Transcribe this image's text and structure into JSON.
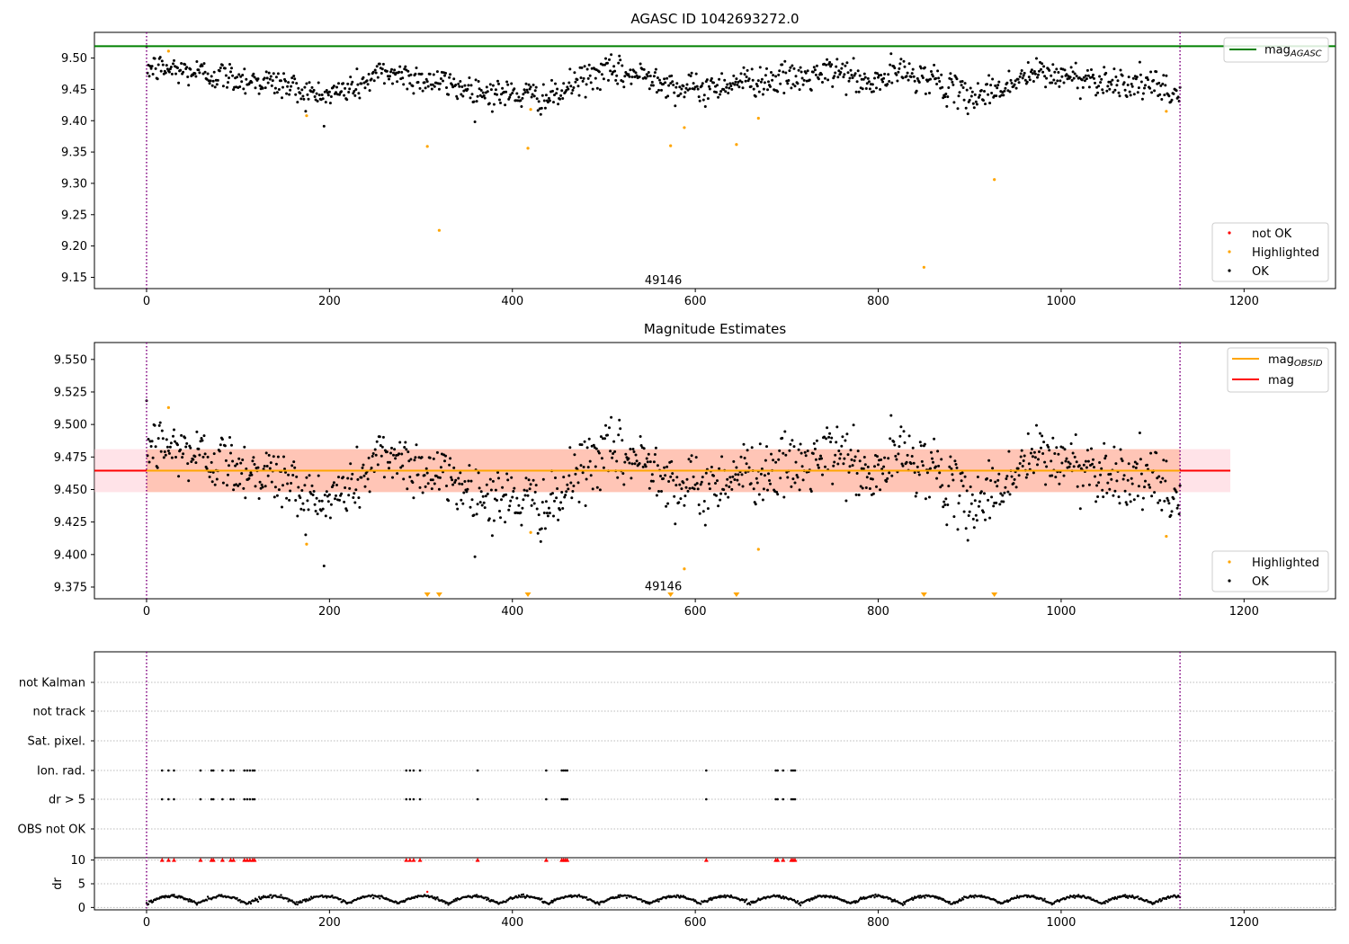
{
  "chart_data": [
    {
      "type": "scatter",
      "title": "AGASC ID 1042693272.0",
      "xlim": [
        -57,
        1300
      ],
      "ylim": [
        9.132,
        9.541
      ],
      "xticks": [
        0,
        200,
        400,
        600,
        800,
        1000,
        1200
      ],
      "xtick_labels": [
        "0",
        "200",
        "400",
        "600",
        "800",
        "1000",
        "1200"
      ],
      "yticks": [
        9.15,
        9.2,
        9.25,
        9.3,
        9.35,
        9.4,
        9.45,
        9.5
      ],
      "ytick_labels": [
        "9.15",
        "9.20",
        "9.25",
        "9.30",
        "9.35",
        "9.40",
        "9.45",
        "9.50"
      ],
      "obs_boundaries": [
        0,
        1130
      ],
      "obs_label": {
        "text": "49146",
        "x": 565,
        "y": 9.146
      },
      "mag_agasc": 9.519,
      "colors": {
        "ok": "#000000",
        "highlighted": "#FFA500",
        "not_ok": "#FF0000",
        "mag_agasc": "#008000",
        "boundary": "#800080"
      },
      "legend_line": {
        "text": "mag",
        "sub": "AGASC",
        "position": "top-right"
      },
      "legend_points": {
        "items": [
          "not OK",
          "Highlighted",
          "OK"
        ],
        "position": "bottom-right"
      },
      "highlighted": [
        [
          24,
          9.511
        ],
        [
          175,
          9.408
        ],
        [
          307,
          9.359
        ],
        [
          320,
          9.225
        ],
        [
          417,
          9.356
        ],
        [
          420,
          9.418
        ],
        [
          573,
          9.36
        ],
        [
          588,
          9.389
        ],
        [
          645,
          9.362
        ],
        [
          669,
          9.404
        ],
        [
          850,
          9.166
        ],
        [
          927,
          9.306
        ],
        [
          1115,
          9.415
        ]
      ]
    },
    {
      "type": "scatter",
      "title": "Magnitude Estimates",
      "xlim": [
        -57,
        1300
      ],
      "ylim": [
        9.366,
        9.563
      ],
      "xticks": [
        0,
        200,
        400,
        600,
        800,
        1000,
        1200
      ],
      "xtick_labels": [
        "0",
        "200",
        "400",
        "600",
        "800",
        "1000",
        "1200"
      ],
      "yticks": [
        9.375,
        9.4,
        9.425,
        9.45,
        9.475,
        9.5,
        9.525,
        9.55
      ],
      "ytick_labels": [
        "9.375",
        "9.400",
        "9.425",
        "9.450",
        "9.475",
        "9.500",
        "9.525",
        "9.550"
      ],
      "obs_boundaries": [
        0,
        1130
      ],
      "obs_label": {
        "text": "49146",
        "x": 565,
        "y": 9.376
      },
      "mag_obsid": 9.4645,
      "mag": 9.4645,
      "band_obsid": {
        "x": [
          0,
          1130
        ],
        "y": [
          9.448,
          9.481
        ]
      },
      "band_mag": {
        "x": [
          -57,
          1185
        ],
        "y": [
          9.448,
          9.481
        ]
      },
      "colors": {
        "ok": "#000000",
        "highlighted": "#FFA500",
        "mag_obsid": "#FFA500",
        "mag": "#FF0000",
        "band_obsid": "#FFA07A",
        "band_mag": "#FFC0CB",
        "boundary": "#800080"
      },
      "legend_lines": {
        "items": [
          {
            "text": "mag",
            "sub": "OBSID"
          },
          {
            "text": "mag",
            "sub": ""
          }
        ],
        "position": "top-right"
      },
      "legend_points": {
        "items": [
          "Highlighted",
          "OK"
        ],
        "position": "bottom-right"
      },
      "highlighted": [
        [
          24,
          9.513
        ],
        [
          175,
          9.408
        ],
        [
          420,
          9.417
        ],
        [
          588,
          9.389
        ],
        [
          669,
          9.404
        ],
        [
          1115,
          9.414
        ]
      ],
      "below_range_markers": [
        307,
        320,
        417,
        573,
        645,
        850,
        927
      ]
    },
    {
      "type": "scatter",
      "title": "",
      "xlim": [
        -57,
        1300
      ],
      "xticks": [
        0,
        200,
        400,
        600,
        800,
        1000,
        1200
      ],
      "xtick_labels": [
        "0",
        "200",
        "400",
        "600",
        "800",
        "1000",
        "1200"
      ],
      "flag_labels": [
        "not Kalman",
        "not track",
        "Sat. pixel.",
        "Ion. rad.",
        "dr > 5",
        "OBS not OK"
      ],
      "flag_points": {
        "Ion. rad.": [
          17,
          24,
          30,
          59,
          71,
          73,
          83,
          92,
          95,
          107,
          110,
          113,
          116,
          118,
          284,
          288,
          292,
          299,
          362,
          437,
          454,
          456,
          458,
          460,
          612,
          688,
          690,
          696,
          705,
          707,
          709
        ],
        "dr > 5": [
          17,
          24,
          30,
          59,
          71,
          73,
          83,
          92,
          95,
          107,
          110,
          113,
          116,
          118,
          284,
          288,
          292,
          299,
          362,
          437,
          454,
          456,
          458,
          460,
          612,
          688,
          690,
          696,
          705,
          707,
          709
        ]
      },
      "dr_ylabel": "dr",
      "dr_yticks": [
        0,
        5,
        10
      ],
      "dr_ytick_labels": [
        "0",
        "5",
        "10"
      ],
      "dr_ylim": [
        -0.5,
        10.5
      ],
      "dr_clipped": [
        17,
        24,
        30,
        59,
        71,
        73,
        83,
        92,
        95,
        107,
        110,
        113,
        116,
        118,
        284,
        288,
        292,
        299,
        362,
        437,
        454,
        456,
        458,
        460,
        612,
        688,
        690,
        696,
        705,
        707,
        709
      ],
      "colors": {
        "ok": "#000000",
        "not_ok": "#FF0000",
        "boundary": "#800080",
        "grid": "#BBBBBB"
      }
    }
  ]
}
